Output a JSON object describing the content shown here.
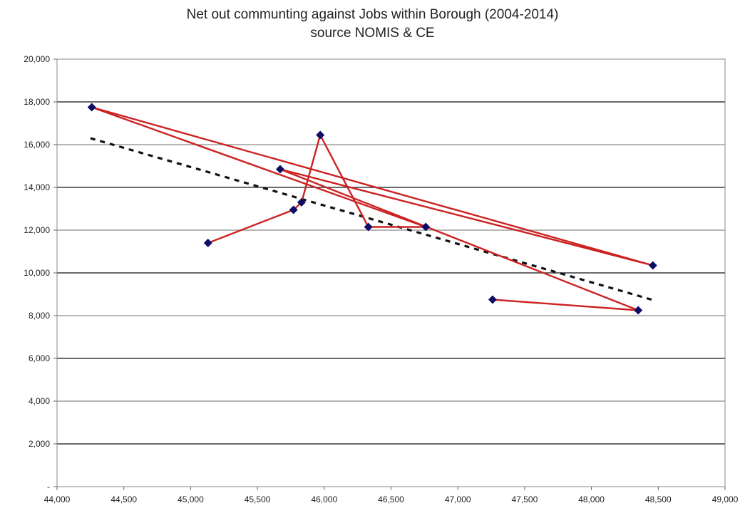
{
  "chart_data": {
    "type": "scatter",
    "title": "Net out communting against Jobs within Borough (2004-2014)",
    "subtitle": "source NOMIS & CE",
    "xlabel": "",
    "ylabel": "",
    "xlim": [
      44000,
      49000
    ],
    "ylim": [
      0,
      20000
    ],
    "x_ticks": [
      44000,
      44500,
      45000,
      45500,
      46000,
      46500,
      47000,
      47500,
      48000,
      48500,
      49000
    ],
    "y_ticks": [
      0,
      2000,
      4000,
      6000,
      8000,
      10000,
      12000,
      14000,
      16000,
      18000,
      20000
    ],
    "x_tick_labels": [
      "44,000",
      "44,500",
      "45,000",
      "45,500",
      "46,000",
      "46,500",
      "47,000",
      "47,500",
      "48,000",
      "48,500",
      "49,000"
    ],
    "y_tick_labels": [
      "-",
      "2,000",
      "4,000",
      "6,000",
      "8,000",
      "10,000",
      "12,000",
      "14,000",
      "16,000",
      "18,000",
      "20,000"
    ],
    "grid": true,
    "legend": false,
    "series": [
      {
        "points": [
          {
            "x": 45130,
            "y": 11400
          },
          {
            "x": 45770,
            "y": 12950
          },
          {
            "x": 45830,
            "y": 13300
          },
          {
            "x": 45970,
            "y": 16450
          },
          {
            "x": 46330,
            "y": 12150
          },
          {
            "x": 46760,
            "y": 12150
          },
          {
            "x": 44260,
            "y": 17750
          },
          {
            "x": 48460,
            "y": 10350
          },
          {
            "x": 45670,
            "y": 14850
          },
          {
            "x": 48350,
            "y": 8250
          },
          {
            "x": 47260,
            "y": 8750
          }
        ],
        "line_color": "#cc2222",
        "marker_color": "#0d0d66"
      }
    ],
    "trendline": {
      "type": "linear",
      "x_range": [
        44250,
        48450
      ],
      "y_values": [
        16300,
        8750
      ],
      "color": "#111111"
    }
  }
}
